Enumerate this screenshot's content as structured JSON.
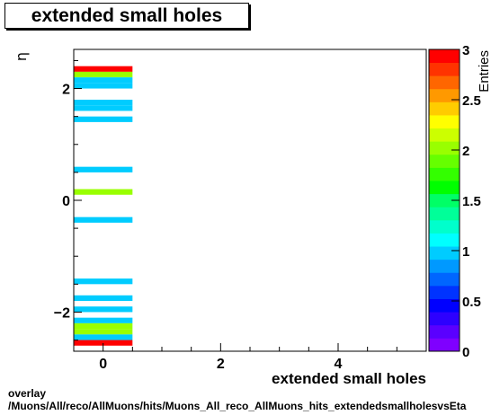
{
  "chart_data": {
    "type": "heatmap",
    "title": "extended small holes",
    "xlabel": "extended small holes",
    "ylabel": "η",
    "zlabel": "Entries",
    "xlim": [
      -0.5,
      5.5
    ],
    "ylim": [
      -2.7,
      2.7
    ],
    "zlim": [
      0,
      3
    ],
    "x_ticks": [
      0,
      2,
      4
    ],
    "y_ticks": [
      -2,
      0,
      2
    ],
    "z_ticks": [
      "0",
      "0.5",
      "1",
      "1.5",
      "2",
      "2.5",
      "3"
    ],
    "bin_width_y": 0.1,
    "cells": [
      {
        "x": 0,
        "y": 2.35,
        "value": 3
      },
      {
        "x": 0,
        "y": 2.25,
        "value": 2
      },
      {
        "x": 0,
        "y": 2.15,
        "value": 1
      },
      {
        "x": 0,
        "y": 2.05,
        "value": 1
      },
      {
        "x": 0,
        "y": 1.75,
        "value": 1
      },
      {
        "x": 0,
        "y": 1.65,
        "value": 1
      },
      {
        "x": 0,
        "y": 1.45,
        "value": 1
      },
      {
        "x": 0,
        "y": 0.55,
        "value": 1
      },
      {
        "x": 0,
        "y": 0.15,
        "value": 2
      },
      {
        "x": 0,
        "y": -0.35,
        "value": 1
      },
      {
        "x": 0,
        "y": -1.45,
        "value": 1
      },
      {
        "x": 0,
        "y": -1.75,
        "value": 1
      },
      {
        "x": 0,
        "y": -1.95,
        "value": 1
      },
      {
        "x": 0,
        "y": -2.15,
        "value": 1
      },
      {
        "x": 0,
        "y": -2.25,
        "value": 2
      },
      {
        "x": 0,
        "y": -2.35,
        "value": 2
      },
      {
        "x": 0,
        "y": -2.45,
        "value": 1
      },
      {
        "x": 0,
        "y": -2.55,
        "value": 3
      }
    ],
    "palette": [
      "#7f00ff",
      "#5a00ff",
      "#2d00ff",
      "#0000ff",
      "#0033ff",
      "#0066ff",
      "#0099ff",
      "#00ccff",
      "#00ffff",
      "#00ffcc",
      "#00ff99",
      "#00ff66",
      "#00ff00",
      "#33ff00",
      "#66ff00",
      "#99ff00",
      "#ccff00",
      "#ffff00",
      "#ffcc00",
      "#ff9900",
      "#ff6600",
      "#ff3300",
      "#ff0000"
    ]
  },
  "footer": {
    "line1": "overlay",
    "line2": "/Muons/All/reco/AllMuons/hits/Muons_All_reco_AllMuons_hits_extendedsmallholesvsEta"
  }
}
